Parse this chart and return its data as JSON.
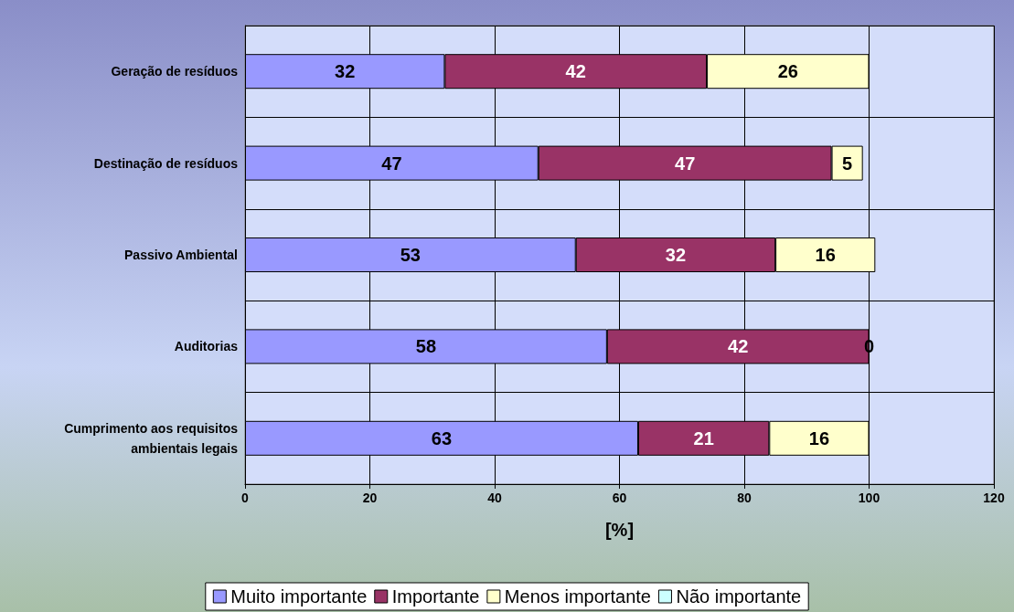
{
  "chart_data": {
    "type": "bar",
    "orientation": "horizontal",
    "stacked": true,
    "xlabel": "[%]",
    "categories": [
      "Geração de resíduos",
      "Destinação de resíduos",
      "Passivo Ambiental",
      "Auditorias",
      "Cumprimento aos requisitos ambientais legais"
    ],
    "series": [
      {
        "name": "Muito importante",
        "color": "#9999ff",
        "values": [
          32,
          47,
          53,
          58,
          63
        ],
        "value_labels": [
          "32",
          "47",
          "53",
          "58",
          "63"
        ]
      },
      {
        "name": "Importante",
        "color": "#993366",
        "values": [
          42,
          47,
          32,
          42,
          21
        ],
        "value_labels": [
          "42",
          "47",
          "32",
          "42",
          "21"
        ]
      },
      {
        "name": "Menos importante",
        "color": "#ffffcc",
        "values": [
          26,
          5,
          16,
          0,
          16
        ],
        "value_labels": [
          "26",
          "5",
          "16",
          "0",
          "16"
        ]
      },
      {
        "name": "Não importante",
        "color": "#ccffff",
        "values": [
          0,
          0,
          0,
          0,
          0
        ]
      }
    ],
    "xlim": [
      0,
      120
    ],
    "xticks": [
      0,
      20,
      40,
      60,
      80,
      100,
      120
    ],
    "grid": true,
    "legend": "bottom"
  }
}
